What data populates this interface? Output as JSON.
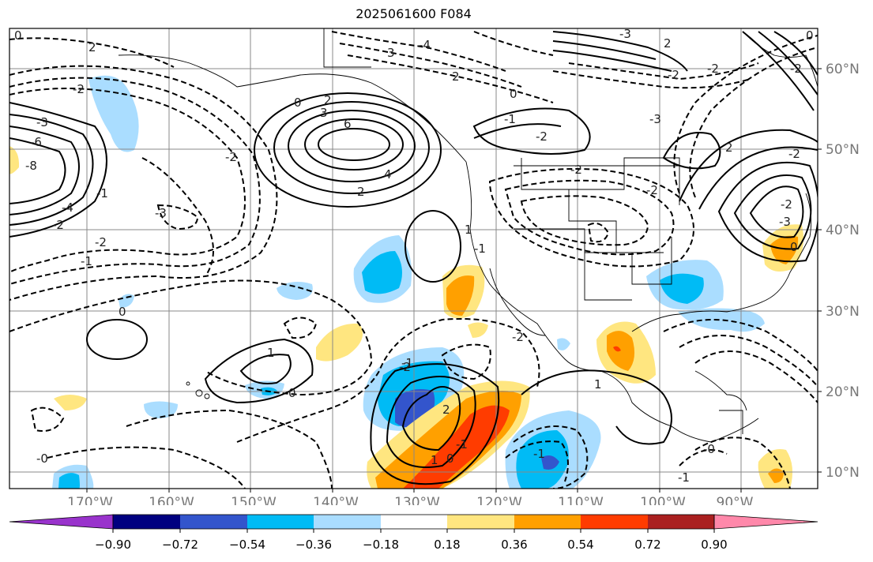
{
  "title": "2025061600 F084",
  "lon_labels": [
    "170°W",
    "160°W",
    "150°W",
    "140°W",
    "130°W",
    "120°W",
    "110°W",
    "100°W",
    "90°W"
  ],
  "lat_labels": [
    "60°N",
    "50°N",
    "40°N",
    "30°N",
    "20°N",
    "10°N"
  ],
  "colorbar": {
    "tick_labels": [
      "−0.90",
      "−0.72",
      "−0.54",
      "−0.36",
      "−0.18",
      "0.18",
      "0.36",
      "0.54",
      "0.72",
      "0.90"
    ],
    "colors": [
      "#9933cc",
      "#000080",
      "#3355cc",
      "#00bbf5",
      "#aaddff",
      "#ffffff",
      "#ffe680",
      "#ffa000",
      "#ff3c00",
      "#aa2020",
      "#ff88aa"
    ]
  },
  "contour_labels": [
    "0",
    "2",
    "3",
    "2",
    "0",
    "2",
    "-6",
    "-8",
    "-4",
    "-2",
    "-2",
    "-3",
    "-3",
    "-4",
    "-3",
    "-2",
    "-1",
    "0",
    "2",
    "3",
    "6",
    "4",
    "2",
    "-2",
    "-1",
    "-2",
    "-2",
    "-3",
    "-2",
    "-2",
    "0",
    "1",
    "1",
    "0",
    "-1",
    "-2",
    "1",
    "2",
    "-2",
    "-1",
    "-1",
    "1",
    "0",
    "-1",
    "-2",
    "-1",
    "-0",
    "-0",
    "-1",
    "-3",
    "-2",
    "2",
    "-2",
    "0",
    "-2",
    "0"
  ]
}
